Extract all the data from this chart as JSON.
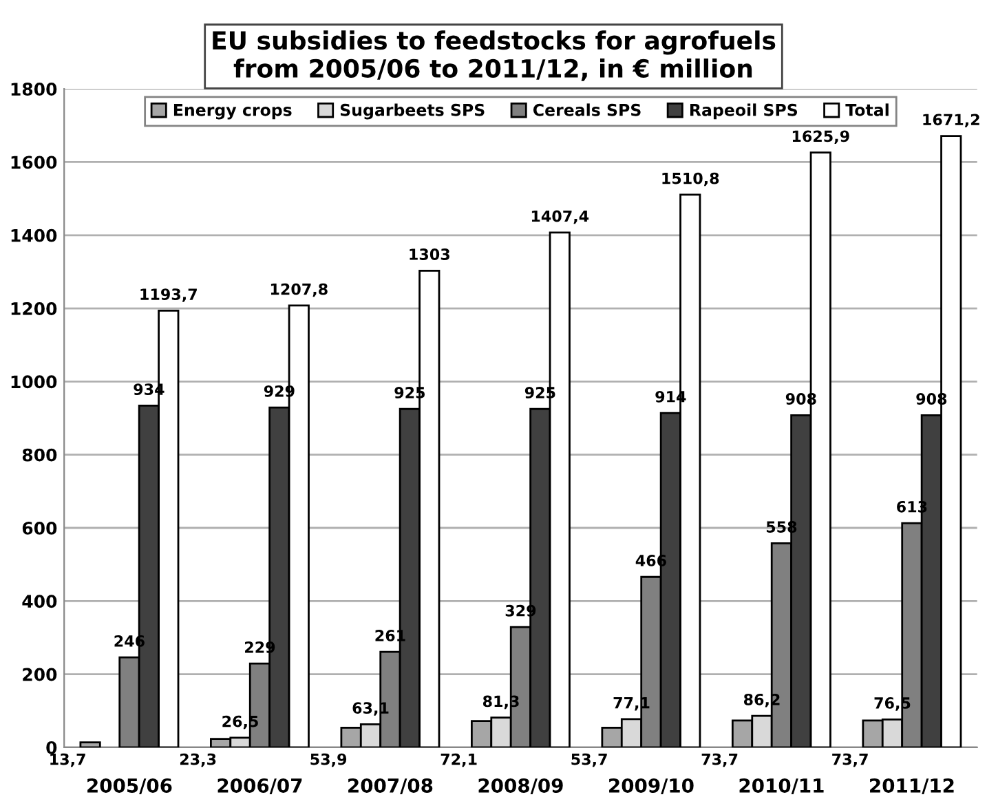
{
  "chart_data": {
    "type": "bar",
    "title": "EU subsidies to feedstocks for agrofuels\nfrom 2005/06 to 2011/12, in € million",
    "categories": [
      "2005/06",
      "2006/07",
      "2007/08",
      "2008/09",
      "2009/10",
      "2010/11",
      "2011/12"
    ],
    "series": [
      {
        "name": "Energy crops",
        "color": "#a6a6a6",
        "values": [
          13.7,
          23.3,
          53.9,
          72.1,
          53.7,
          73.7,
          73.7
        ],
        "value_labels": [
          "13,7",
          "23,3",
          "53,9",
          "72,1",
          "53,7",
          "73,7",
          "73,7"
        ]
      },
      {
        "name": "Sugarbeets SPS",
        "color": "#d9d9d9",
        "values": [
          null,
          26.5,
          63.1,
          81.3,
          77.1,
          86.2,
          76.5
        ],
        "value_labels": [
          null,
          "26,5",
          "63,1",
          "81,3",
          "77,1",
          "86,2",
          "76,5"
        ]
      },
      {
        "name": "Cereals SPS",
        "color": "#808080",
        "values": [
          246,
          229,
          261,
          329,
          466,
          558,
          613
        ],
        "value_labels": [
          "246",
          "229",
          "261",
          "329",
          "466",
          "558",
          "613"
        ]
      },
      {
        "name": "Rapeoil SPS",
        "color": "#404040",
        "values": [
          934,
          929,
          925,
          925,
          914,
          908,
          908
        ],
        "value_labels": [
          "934",
          "929",
          "925",
          "925",
          "914",
          "908",
          "908"
        ]
      },
      {
        "name": "Total",
        "color": "#ffffff",
        "values": [
          1193.7,
          1207.8,
          1303,
          1407.4,
          1510.8,
          1625.9,
          1671.2
        ],
        "value_labels": [
          "1193,7",
          "1207,8",
          "1303",
          "1407,4",
          "1510,8",
          "1625,9",
          "1671,2"
        ]
      }
    ],
    "ylim": [
      0,
      1800
    ],
    "yticks": [
      0,
      200,
      400,
      600,
      800,
      1000,
      1200,
      1400,
      1600,
      1800
    ],
    "grid": "y",
    "legend": "top"
  }
}
